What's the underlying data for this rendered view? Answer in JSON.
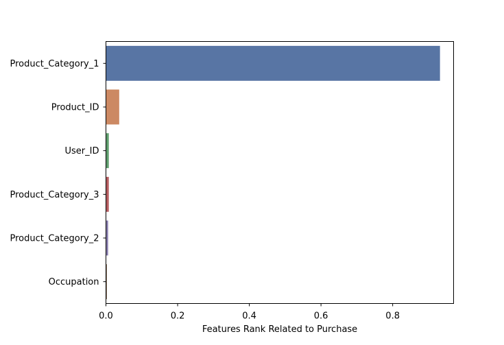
{
  "chart_data": {
    "type": "bar",
    "orientation": "horizontal",
    "title": "",
    "xlabel": "Features Rank Related to Purchase",
    "ylabel": "",
    "categories": [
      "Product_Category_1",
      "Product_ID",
      "User_ID",
      "Product_Category_3",
      "Product_Category_2",
      "Occupation"
    ],
    "values": [
      0.932,
      0.037,
      0.008,
      0.008,
      0.006,
      0.002
    ],
    "colors": [
      "#5875a4",
      "#cc8963",
      "#5f9e6e",
      "#b55d60",
      "#857aab",
      "#8d7866"
    ],
    "xlim": [
      0,
      0.97
    ],
    "xticks": [
      0.0,
      0.2,
      0.4,
      0.6,
      0.8
    ],
    "xtick_labels": [
      "0.0",
      "0.2",
      "0.4",
      "0.6",
      "0.8"
    ],
    "grid": false,
    "legend": "none"
  }
}
